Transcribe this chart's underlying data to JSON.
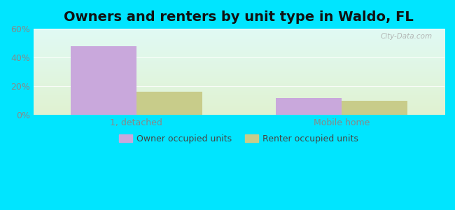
{
  "title": "Owners and renters by unit type in Waldo, FL",
  "categories": [
    "1, detached",
    "Mobile home"
  ],
  "owner_values": [
    48,
    12
  ],
  "renter_values": [
    16,
    10
  ],
  "owner_color": "#c9a8dc",
  "renter_color": "#c8cc8a",
  "owner_label": "Owner occupied units",
  "renter_label": "Renter occupied units",
  "ylim": [
    0,
    60
  ],
  "yticks": [
    0,
    20,
    40,
    60
  ],
  "ytick_labels": [
    "0%",
    "20%",
    "40%",
    "60%"
  ],
  "bar_width": 0.32,
  "outer_bg_color": "#00e5ff",
  "plot_bg_top_left": "#d6f5f0",
  "plot_bg_bottom_right": "#d8edcc",
  "title_fontsize": 14,
  "axis_label_fontsize": 9,
  "legend_fontsize": 9,
  "grid_color": "#e8f5e0",
  "tick_color": "#888888"
}
